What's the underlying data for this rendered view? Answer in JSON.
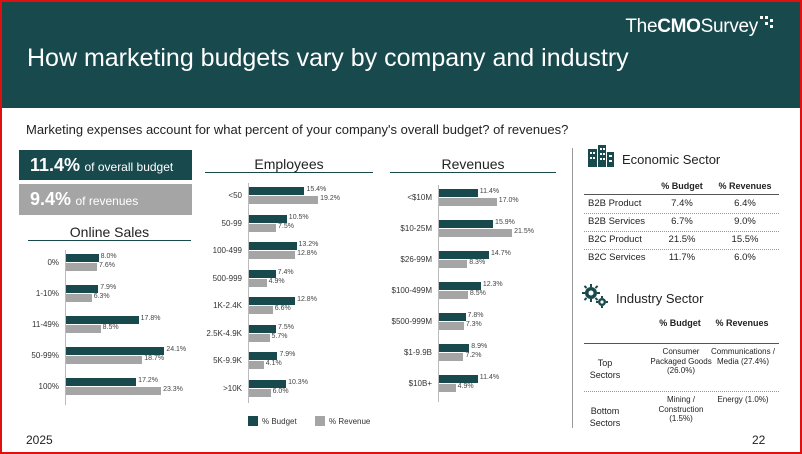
{
  "header": {
    "logo_prefix": "The",
    "logo_bold": "CMO",
    "logo_suffix": "Survey",
    "title": "How marketing budgets vary by company and industry"
  },
  "question": "Marketing expenses account for what percent of your company's overall budget? of revenues?",
  "kpis": {
    "budget_value": "11.4%",
    "budget_label": "of overall budget",
    "revenue_value": "9.4%",
    "revenue_label": "of revenues"
  },
  "colors": {
    "budget": "#17494d",
    "revenue": "#a5a5a5"
  },
  "chart_data": [
    {
      "type": "bar",
      "title": "Online Sales",
      "orientation": "horizontal",
      "categories": [
        "0%",
        "1-10%",
        "11-49%",
        "50-99%",
        "100%"
      ],
      "series": [
        {
          "name": "% Budget",
          "values": [
            8.0,
            7.9,
            17.8,
            24.1,
            17.2
          ]
        },
        {
          "name": "% Revenue",
          "values": [
            7.6,
            6.3,
            8.5,
            18.7,
            23.3
          ]
        }
      ]
    },
    {
      "type": "bar",
      "title": "Employees",
      "orientation": "horizontal",
      "categories": [
        "<50",
        "50-99",
        "100-499",
        "500-999",
        "1K-2.4K",
        "2.5K-4.9K",
        "5K-9.9K",
        ">10K"
      ],
      "series": [
        {
          "name": "% Budget",
          "values": [
            15.4,
            10.5,
            13.2,
            7.4,
            12.8,
            7.5,
            7.9,
            10.3
          ]
        },
        {
          "name": "% Revenue",
          "values": [
            19.2,
            7.5,
            12.8,
            4.9,
            6.6,
            5.7,
            4.1,
            6.0
          ]
        }
      ]
    },
    {
      "type": "bar",
      "title": "Revenues",
      "orientation": "horizontal",
      "categories": [
        "<$10M",
        "$10-25M",
        "$26-99M",
        "$100-499M",
        "$500-999M",
        "$1-9.9B",
        "$10B+"
      ],
      "series": [
        {
          "name": "% Budget",
          "values": [
            11.4,
            15.9,
            14.7,
            12.3,
            7.8,
            8.9,
            11.4
          ]
        },
        {
          "name": "% Revenue",
          "values": [
            17.0,
            21.5,
            8.3,
            8.5,
            7.3,
            7.2,
            4.9
          ]
        }
      ]
    },
    {
      "type": "table",
      "title": "Economic Sector",
      "columns": [
        "",
        "% Budget",
        "% Revenues"
      ],
      "rows": [
        [
          "B2B Product",
          "7.4%",
          "6.4%"
        ],
        [
          "B2B Services",
          "6.7%",
          "9.0%"
        ],
        [
          "B2C Product",
          "21.5%",
          "15.5%"
        ],
        [
          "B2C Services",
          "11.7%",
          "6.0%"
        ]
      ]
    },
    {
      "type": "table",
      "title": "Industry Sector",
      "columns": [
        "",
        "% Budget",
        "% Revenues"
      ],
      "rows": [
        [
          "Top Sectors",
          "Consumer Packaged Goods (26.0%)",
          "Communications / Media (27.4%)"
        ],
        [
          "Bottom Sectors",
          "Mining / Construction (1.5%)",
          "Energy (1.0%)"
        ]
      ]
    }
  ],
  "legend": {
    "budget": "% Budget",
    "revenue": "% Revenue"
  },
  "footer": {
    "year": "2025",
    "page": "22"
  }
}
